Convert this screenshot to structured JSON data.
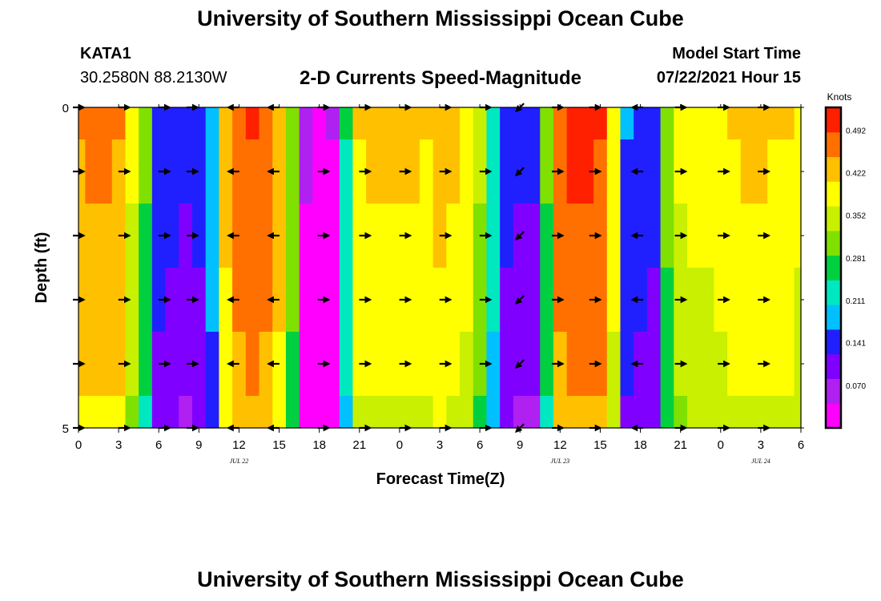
{
  "header": {
    "title": "University of Southern Mississippi Ocean Cube",
    "station_id": "KATA1",
    "coords": "30.2580N  88.2130W",
    "subtitle": "2-D Currents Speed-Magnitude",
    "model_start_label": "Model Start Time",
    "model_start_value": "07/22/2021 Hour 15"
  },
  "footer": {
    "title": "University of Southern Mississippi Ocean Cube"
  },
  "colors": {
    "scale": [
      "#ff00ff",
      "#b020f0",
      "#8000ff",
      "#2020ff",
      "#00c0ff",
      "#00e8c0",
      "#00d040",
      "#80e000",
      "#c8f000",
      "#ffff00",
      "#ffc000",
      "#ff7000",
      "#ff2000"
    ]
  },
  "chart_data": {
    "type": "heatmap",
    "title": "2-D Currents Speed-Magnitude",
    "xlabel": "Forecast Time(Z)",
    "ylabel": "Depth (ft)",
    "x_ticks": [
      "0",
      "3",
      "6",
      "9",
      "12",
      "15",
      "18",
      "21",
      "0",
      "3",
      "6",
      "9",
      "12",
      "15",
      "18",
      "21",
      "0",
      "3",
      "6"
    ],
    "x_range_hours": [
      0,
      54
    ],
    "date_labels": [
      {
        "text": "JUL 22",
        "hour": 12
      },
      {
        "text": "JUL 23",
        "hour": 36
      },
      {
        "text": "JUL 24",
        "hour": 51
      }
    ],
    "y_ticks": [
      "0",
      "5"
    ],
    "y_range_ft": [
      0,
      5
    ],
    "depth_rows_ft": [
      0,
      1,
      2,
      3,
      4,
      5
    ],
    "colorbar": {
      "unit": "Knots",
      "range": [
        0.0,
        0.53
      ],
      "tick_labels": [
        "0.492",
        "0.422",
        "0.352",
        "0.281",
        "0.211",
        "0.141",
        "0.070"
      ]
    },
    "speed_profile_hours": [
      0,
      1,
      2,
      3,
      4,
      5,
      6,
      7,
      8,
      9,
      10,
      11,
      12,
      13,
      14,
      15,
      16,
      17,
      18,
      19,
      20,
      21,
      22,
      23,
      24,
      25,
      26,
      27,
      28,
      29,
      30,
      31,
      32,
      33,
      34,
      35,
      36,
      37,
      38,
      39,
      40,
      41,
      42,
      43,
      44,
      45,
      46,
      47,
      48,
      49,
      50,
      51,
      52,
      53,
      54
    ],
    "speed_knots": [
      0.45,
      0.46,
      0.46,
      0.45,
      0.38,
      0.3,
      0.16,
      0.15,
      0.14,
      0.15,
      0.2,
      0.43,
      0.48,
      0.49,
      0.48,
      0.44,
      0.32,
      0.06,
      0.04,
      0.05,
      0.25,
      0.41,
      0.42,
      0.42,
      0.42,
      0.42,
      0.41,
      0.43,
      0.42,
      0.4,
      0.34,
      0.24,
      0.15,
      0.14,
      0.14,
      0.3,
      0.48,
      0.5,
      0.5,
      0.49,
      0.4,
      0.17,
      0.16,
      0.15,
      0.31,
      0.38,
      0.39,
      0.39,
      0.4,
      0.41,
      0.42,
      0.42,
      0.41,
      0.41,
      0.39
    ],
    "depth_deltas_knots": [
      0.0,
      -0.01,
      -0.02,
      -0.03,
      -0.04,
      -0.06
    ],
    "vector_columns": [
      {
        "hour": 0,
        "dir": "E"
      },
      {
        "hour": 3.4,
        "dir": "E"
      },
      {
        "hour": 6.4,
        "dir": "E"
      },
      {
        "hour": 8.5,
        "dir": "E"
      },
      {
        "hour": 11.6,
        "dir": "W"
      },
      {
        "hour": 14.6,
        "dir": "W"
      },
      {
        "hour": 18.3,
        "dir": "E"
      },
      {
        "hour": 21.4,
        "dir": "E"
      },
      {
        "hour": 24.4,
        "dir": "E"
      },
      {
        "hour": 27.4,
        "dir": "E"
      },
      {
        "hour": 30.4,
        "dir": "E"
      },
      {
        "hour": 33.0,
        "dir": "SW"
      },
      {
        "hour": 35.8,
        "dir": "E"
      },
      {
        "hour": 38.6,
        "dir": "E"
      },
      {
        "hour": 41.8,
        "dir": "W"
      },
      {
        "hour": 45.0,
        "dir": "E"
      },
      {
        "hour": 48.2,
        "dir": "E"
      },
      {
        "hour": 51.2,
        "dir": "E"
      }
    ]
  }
}
